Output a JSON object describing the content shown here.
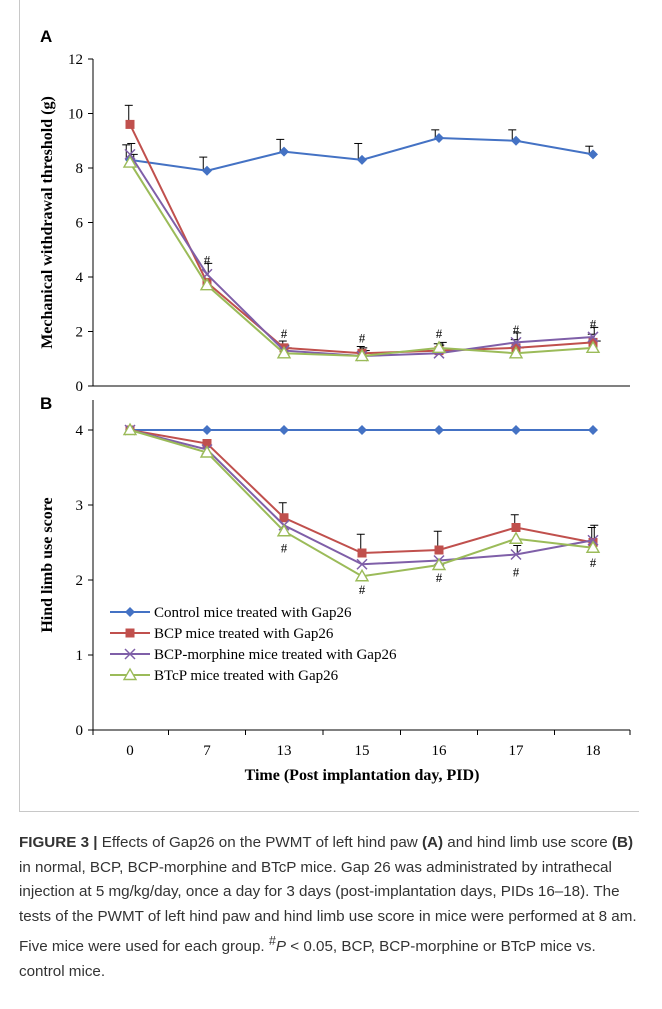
{
  "chart_data": [
    {
      "type": "line",
      "panel_label": "A",
      "ylabel": "Mechanical withdrawal threshold (g)",
      "xlabel": "",
      "categories": [
        "0",
        "7",
        "13",
        "15",
        "16",
        "17",
        "18"
      ],
      "ylim": [
        0,
        12
      ],
      "yticks": [
        "0",
        "2",
        "4",
        "6",
        "8",
        "10",
        "12"
      ],
      "grid": false,
      "series": [
        {
          "name": "Control mice treated with Gap26",
          "color": "#4472C4",
          "marker": "diamond",
          "values": [
            8.3,
            7.9,
            8.6,
            8.3,
            9.1,
            9.0,
            8.5
          ],
          "errors": [
            0.55,
            0.5,
            0.45,
            0.6,
            0.3,
            0.4,
            0.3
          ]
        },
        {
          "name": "BCP mice treated with Gap26",
          "color": "#C0504D",
          "marker": "square",
          "values": [
            9.6,
            3.8,
            1.4,
            1.2,
            1.3,
            1.4,
            1.6
          ],
          "errors": [
            0.7,
            0.0,
            0.25,
            0.25,
            0.25,
            0.3,
            0.3
          ]
        },
        {
          "name": "BCP-morphine mice treated with Gap26",
          "color": "#7F5FA8",
          "marker": "x",
          "values": [
            8.5,
            4.1,
            1.3,
            1.1,
            1.2,
            1.6,
            1.8
          ],
          "errors": [
            0.4,
            0.4,
            0.2,
            0.3,
            0.3,
            0.35,
            0.35
          ]
        },
        {
          "name": "BTcP mice treated with Gap26",
          "color": "#9BBB59",
          "marker": "triangle",
          "values": [
            8.2,
            3.7,
            1.2,
            1.1,
            1.4,
            1.2,
            1.4
          ],
          "errors": [
            0.3,
            0.0,
            0.2,
            0.2,
            0.2,
            0.2,
            0.25
          ]
        }
      ],
      "annotations": [
        {
          "x_index": 1,
          "value": 4.6,
          "text": "#"
        },
        {
          "x_index": 2,
          "value": 1.9,
          "text": "#"
        },
        {
          "x_index": 3,
          "value": 1.75,
          "text": "#"
        },
        {
          "x_index": 4,
          "value": 1.9,
          "text": "#"
        },
        {
          "x_index": 5,
          "value": 2.05,
          "text": "#"
        },
        {
          "x_index": 6,
          "value": 2.25,
          "text": "#"
        }
      ]
    },
    {
      "type": "line",
      "panel_label": "B",
      "ylabel": "Hind limb use score",
      "xlabel": "Time (Post implantation day, PID)",
      "categories": [
        "0",
        "7",
        "13",
        "15",
        "16",
        "17",
        "18"
      ],
      "ylim": [
        0,
        4.4
      ],
      "yticks": [
        "0",
        "1",
        "2",
        "3",
        "4"
      ],
      "grid": false,
      "legend": "lower-left",
      "series": [
        {
          "name": "Control mice treated with Gap26",
          "color": "#4472C4",
          "marker": "diamond",
          "values": [
            4.0,
            4.0,
            4.0,
            4.0,
            4.0,
            4.0,
            4.0
          ],
          "errors": [
            0,
            0,
            0,
            0,
            0,
            0,
            0
          ]
        },
        {
          "name": "BCP mice treated with Gap26",
          "color": "#C0504D",
          "marker": "square",
          "values": [
            4.0,
            3.82,
            2.83,
            2.36,
            2.4,
            2.7,
            2.5
          ],
          "errors": [
            0,
            0,
            0.2,
            0.25,
            0.25,
            0.17,
            0.2
          ]
        },
        {
          "name": "BCP-morphine mice treated with Gap26",
          "color": "#7F5FA8",
          "marker": "x",
          "values": [
            4.0,
            3.74,
            2.73,
            2.21,
            2.26,
            2.34,
            2.53
          ],
          "errors": [
            0,
            0,
            0,
            0,
            0,
            0.12,
            0.2
          ]
        },
        {
          "name": "BTcP mice treated with Gap26",
          "color": "#9BBB59",
          "marker": "triangle",
          "values": [
            4.0,
            3.7,
            2.65,
            2.05,
            2.2,
            2.55,
            2.43
          ],
          "errors": [
            0,
            0,
            0,
            0,
            0,
            0,
            0
          ]
        }
      ],
      "annotations": [
        {
          "x_index": 2,
          "value": 2.42,
          "text": "#"
        },
        {
          "x_index": 3,
          "value": 1.87,
          "text": "#"
        },
        {
          "x_index": 4,
          "value": 2.03,
          "text": "#"
        },
        {
          "x_index": 5,
          "value": 2.1,
          "text": "#"
        },
        {
          "x_index": 6,
          "value": 2.23,
          "text": "#"
        }
      ]
    }
  ],
  "caption": {
    "figure_label": "FIGURE 3 |",
    "part1": " Effects of Gap26 on the PWMT of left hind paw ",
    "ref_a": "(A)",
    "part2": " and hind limb use score ",
    "ref_b": "(B)",
    "part3": " in normal, BCP, BCP-morphine and BTcP mice. Gap 26 was administrated by intrathecal injection at 5 mg/kg/day, once a day for 3 days (post-implantation days, PIDs 16–18). The tests of the PWMT of left hind paw and hind limb use score in mice were performed at 8 am. Five mice were used for each group. ",
    "sup": "#",
    "part4": "P",
    "part5": " < 0.05, BCP, BCP-morphine or BTcP mice vs. control mice."
  }
}
